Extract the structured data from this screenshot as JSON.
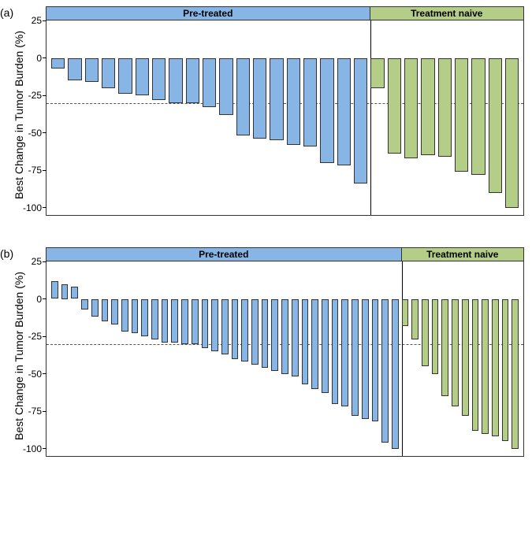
{
  "colors": {
    "pretreated": "#87b6e6",
    "naive": "#b4cd87",
    "border": "#333333",
    "dashed": "#555555",
    "background": "#ffffff"
  },
  "ylabel": "Best Change in Tumor Burden (%)",
  "legend": {
    "pretreated": "Pre-treated",
    "naive": "Treatment naive"
  },
  "yaxis": {
    "min": -105,
    "max": 25,
    "ticks": [
      25,
      0,
      -25,
      -50,
      -75,
      -100
    ],
    "ref_line": -30
  },
  "panels": [
    {
      "label": "(a)",
      "pretreated": [
        -7,
        -15,
        -16,
        -20,
        -24,
        -25,
        -28,
        -30,
        -30,
        -33,
        -38,
        -52,
        -54,
        -55,
        -58,
        -59,
        -70,
        -72,
        -84
      ],
      "naive": [
        -20,
        -64,
        -67,
        -65,
        -66,
        -76,
        -78,
        -90,
        -100
      ]
    },
    {
      "label": "(b)",
      "pretreated": [
        12,
        10,
        8,
        -7,
        -12,
        -15,
        -17,
        -22,
        -23,
        -25,
        -27,
        -29,
        -29,
        -30,
        -30,
        -33,
        -35,
        -37,
        -40,
        -42,
        -44,
        -46,
        -48,
        -50,
        -52,
        -57,
        -60,
        -63,
        -70,
        -72,
        -78,
        -80,
        -82,
        -96,
        -100
      ],
      "naive": [
        -18,
        -27,
        -45,
        -50,
        -65,
        -72,
        -78,
        -88,
        -90,
        -92,
        -95,
        -100
      ]
    }
  ],
  "typography": {
    "panel_label_fontsize": 14,
    "axis_label_fontsize": 14,
    "tick_fontsize": 12,
    "legend_fontsize": 12
  }
}
